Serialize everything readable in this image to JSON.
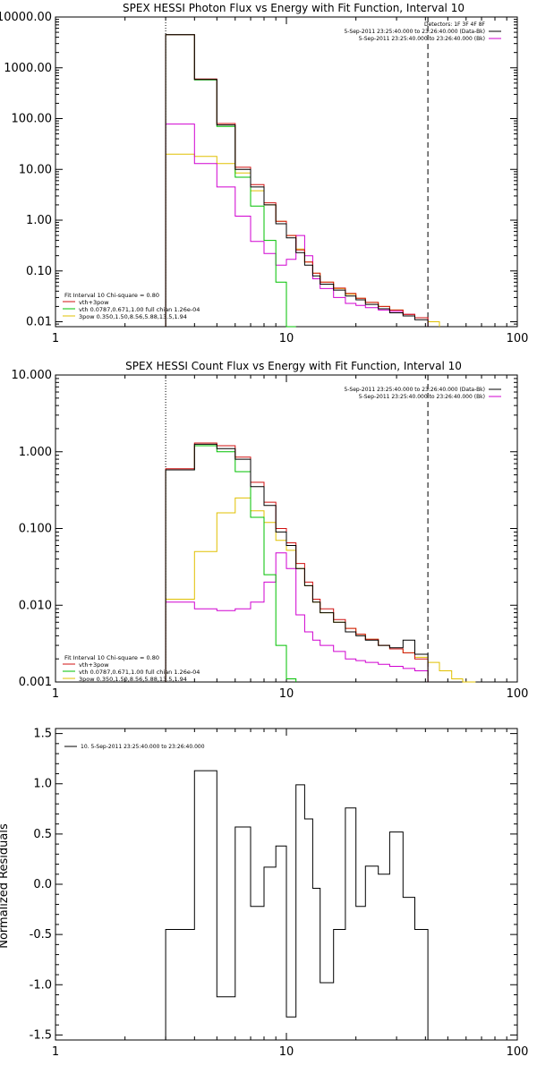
{
  "chart_data": [
    {
      "type": "line",
      "title": "SPEX HESSI Photon Flux vs Energy with Fit Function, Interval 10",
      "xscale": "log",
      "yscale": "log",
      "xlim": [
        1,
        100
      ],
      "ylim": [
        0.008,
        10000
      ],
      "xticks": [
        1,
        10,
        100
      ],
      "xticklabels": [
        "1",
        "10",
        "100"
      ],
      "yticks": [
        0.01,
        0.1,
        1,
        10,
        100,
        1000,
        10000
      ],
      "yticklabels": [
        "0.01",
        "0.10",
        "1.00",
        "10.00",
        "100.00",
        "1000.00",
        "10000.00"
      ],
      "vlines": {
        "dotted": 3.0,
        "dashed": 41.0
      },
      "header": {
        "detectors": "Detectors: 1F 3F 4F 8F",
        "line1": "5-Sep-2011 23:25:40.000 to 23:26:40.000 (Data-Bk)",
        "line2": "5-Sep-2011 23:25:40.000 to 23:26:40.000 (Bk)"
      },
      "legend_lines": [
        "Fit Interval 10   Chi-square = 0.80",
        "vth+3pow",
        "vth 0.0787,0.671,1.00  full chian 1.26e-04",
        "3pow 0.350,1.50,8.56,5.88,13.5,1.94"
      ],
      "edges": [
        3.0,
        4.0,
        5.0,
        6.0,
        7.0,
        8.0,
        9.0,
        10.0,
        11.0,
        12.0,
        13.0,
        14.0,
        16.0,
        18.0,
        20.0,
        22.0,
        25.0,
        28.0,
        32.0,
        36.0,
        41.0,
        46.0
      ],
      "series": [
        {
          "name": "Data-Bk",
          "color": "#000000",
          "values": [
            4500,
            590,
            75,
            10,
            4.5,
            2.0,
            0.85,
            0.45,
            0.23,
            0.13,
            0.08,
            0.055,
            0.042,
            0.032,
            0.027,
            0.022,
            0.018,
            0.015,
            0.013,
            0.011,
            null
          ]
        },
        {
          "name": "vth+3pow",
          "color": "#d01010",
          "values": [
            4500,
            600,
            80,
            11,
            5.0,
            2.2,
            0.95,
            0.5,
            0.26,
            0.15,
            0.09,
            0.06,
            0.046,
            0.036,
            0.029,
            0.024,
            0.02,
            0.017,
            0.014,
            0.012,
            null
          ]
        },
        {
          "name": "vth",
          "color": "#00c000",
          "values": [
            4500,
            580,
            70,
            7.0,
            1.9,
            0.4,
            0.06,
            0.008,
            null,
            null,
            null,
            null,
            null,
            null,
            null,
            null,
            null,
            null,
            null,
            null,
            null
          ]
        },
        {
          "name": "3pow",
          "color": "#e0c000",
          "values": [
            20,
            18,
            13,
            8.5,
            3.8,
            2.0,
            0.95,
            0.5,
            0.27,
            0.15,
            0.09,
            0.06,
            0.045,
            0.035,
            0.029,
            0.024,
            0.02,
            0.017,
            0.014,
            0.012,
            0.01
          ]
        },
        {
          "name": "Bk",
          "color": "#d000d0",
          "values": [
            78,
            13,
            4.5,
            1.2,
            0.38,
            0.22,
            0.13,
            0.17,
            0.5,
            0.2,
            0.07,
            0.045,
            0.03,
            0.023,
            0.021,
            0.019,
            0.017,
            0.016,
            0.014,
            0.012,
            null
          ]
        }
      ]
    },
    {
      "type": "line",
      "title": "SPEX HESSI Count Flux vs Energy with Fit Function, Interval 10",
      "xscale": "log",
      "yscale": "log",
      "xlim": [
        1,
        100
      ],
      "ylim": [
        0.001,
        10
      ],
      "xticks": [
        1,
        10,
        100
      ],
      "xticklabels": [
        "1",
        "10",
        "100"
      ],
      "yticks": [
        0.001,
        0.01,
        0.1,
        1,
        10
      ],
      "yticklabels": [
        "0.001",
        "0.010",
        "0.100",
        "1.000",
        "10.000"
      ],
      "vlines": {
        "dotted": 3.0,
        "dashed": 41.0
      },
      "header": {
        "line1": "5-Sep-2011 23:25:40.000 to 23:26:40.000 (Data-Bk)",
        "line2": "5-Sep-2011 23:25:40.000 to 23:26:40.000 (Bk)"
      },
      "legend_lines": [
        "Fit Interval 10   Chi-square = 0.80",
        "vth+3pow",
        "vth 0.0787,0.671,1.00  full chian 1.26e-04",
        "3pow 0.350,1.50,8.56,5.88,13.5,1.94"
      ],
      "edges": [
        3.0,
        4.0,
        5.0,
        6.0,
        7.0,
        8.0,
        9.0,
        10.0,
        11.0,
        12.0,
        13.0,
        14.0,
        16.0,
        18.0,
        20.0,
        22.0,
        25.0,
        28.0,
        32.0,
        36.0,
        41.0,
        46.0,
        52.0,
        58.0,
        66.0
      ],
      "series": [
        {
          "name": "Data-Bk",
          "color": "#000000",
          "values": [
            0.58,
            1.25,
            1.1,
            0.8,
            0.35,
            0.2,
            0.09,
            0.06,
            0.03,
            0.018,
            0.011,
            0.008,
            0.006,
            0.0045,
            0.004,
            0.0035,
            0.003,
            0.0028,
            0.0035,
            0.0023,
            null,
            null,
            null,
            null
          ]
        },
        {
          "name": "vth+3pow",
          "color": "#d01010",
          "values": [
            0.6,
            1.3,
            1.2,
            0.85,
            0.4,
            0.22,
            0.1,
            0.065,
            0.035,
            0.02,
            0.012,
            0.009,
            0.0065,
            0.005,
            0.0042,
            0.0036,
            0.003,
            0.0027,
            0.0024,
            0.002,
            null,
            null,
            null,
            null
          ]
        },
        {
          "name": "vth",
          "color": "#00c000",
          "values": [
            0.58,
            1.2,
            1.0,
            0.55,
            0.14,
            0.025,
            0.003,
            0.0011,
            null,
            null,
            null,
            null,
            null,
            null,
            null,
            null,
            null,
            null,
            null,
            null,
            null,
            null,
            null,
            null
          ]
        },
        {
          "name": "3pow",
          "color": "#e0c000",
          "values": [
            0.012,
            0.05,
            0.16,
            0.25,
            0.17,
            0.12,
            0.07,
            0.052,
            0.03,
            0.018,
            0.011,
            0.008,
            0.006,
            0.005,
            0.0042,
            0.0036,
            0.003,
            0.0027,
            0.0024,
            0.0021,
            0.0018,
            0.0014,
            0.0011,
            0.001
          ]
        },
        {
          "name": "Bk",
          "color": "#d000d0",
          "values": [
            0.011,
            0.009,
            0.0085,
            0.009,
            0.011,
            0.02,
            0.048,
            0.03,
            0.0075,
            0.0045,
            0.0035,
            0.003,
            0.0025,
            0.002,
            0.0019,
            0.0018,
            0.0017,
            0.0016,
            0.0015,
            0.0014,
            null,
            null,
            null,
            null
          ]
        }
      ]
    },
    {
      "type": "line",
      "title": "",
      "ylabel": "Normalized Residuals",
      "xscale": "log",
      "xlim": [
        1,
        100
      ],
      "ylim": [
        -1.55,
        1.55
      ],
      "xticks": [
        1,
        10,
        100
      ],
      "xticklabels": [
        "1",
        "10",
        "100"
      ],
      "yticks": [
        -1.5,
        -1.0,
        -0.5,
        0.0,
        0.5,
        1.0,
        1.5
      ],
      "yticklabels": [
        "-1.5",
        "-1.0",
        "-0.5",
        "0.0",
        "0.5",
        "1.0",
        "1.5"
      ],
      "legend_lines": [
        "10.  5-Sep-2011 23:25:40.000 to 23:26:40.000"
      ],
      "edges": [
        3.0,
        4.0,
        5.0,
        6.0,
        7.0,
        8.0,
        9.0,
        10.0,
        11.0,
        12.0,
        13.0,
        14.0,
        16.0,
        18.0,
        20.0,
        22.0,
        25.0,
        28.0,
        32.0,
        36.0,
        41.0
      ],
      "series": [
        {
          "name": "10.  5-Sep-2011 23:25:40.000 to 23:26:40.000",
          "color": "#000000",
          "values": [
            -0.45,
            1.13,
            -1.12,
            0.57,
            -0.22,
            0.17,
            0.38,
            -1.32,
            0.99,
            0.65,
            -0.04,
            -0.98,
            -0.45,
            0.76,
            -0.22,
            0.18,
            0.1,
            0.52,
            -0.13,
            -0.45
          ]
        }
      ]
    }
  ]
}
